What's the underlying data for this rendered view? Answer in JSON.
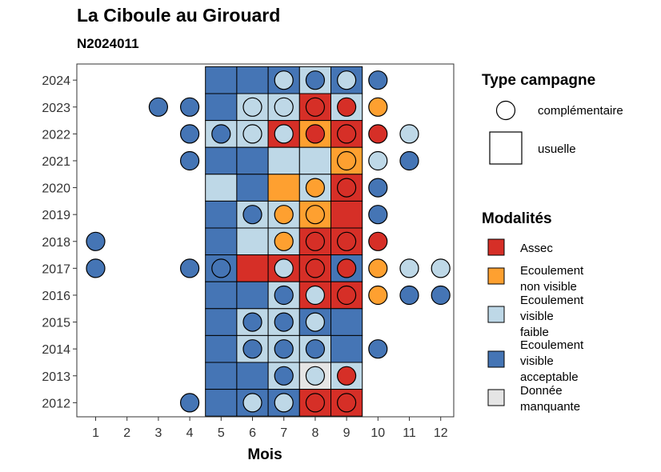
{
  "chart_data": {
    "type": "heatmap",
    "title": "La Ciboule au Girouard",
    "subtitle": "N2024011",
    "xlabel": "Mois",
    "ylabel": "",
    "x_ticks": [
      "1",
      "2",
      "3",
      "4",
      "5",
      "6",
      "7",
      "8",
      "9",
      "10",
      "11",
      "12"
    ],
    "y_ticks": [
      "2012",
      "2013",
      "2014",
      "2015",
      "2016",
      "2017",
      "2018",
      "2019",
      "2020",
      "2021",
      "2022",
      "2023",
      "2024"
    ],
    "legend_shape": {
      "title": "Type campagne",
      "items": [
        {
          "key": "complementaire",
          "label": "complémentaire"
        },
        {
          "key": "usuelle",
          "label": "usuelle"
        }
      ]
    },
    "legend_fill": {
      "title": "Modalités",
      "items": [
        {
          "key": "A",
          "lines": [
            "Assec"
          ],
          "color": "#d62f27"
        },
        {
          "key": "N",
          "lines": [
            "Ecoulement",
            "non visible"
          ],
          "color": "#fea030"
        },
        {
          "key": "F",
          "lines": [
            "Ecoulement",
            "visible",
            "faible"
          ],
          "color": "#bed8e7"
        },
        {
          "key": "V",
          "lines": [
            "Ecoulement",
            "visible",
            "acceptable"
          ],
          "color": "#4575b5"
        },
        {
          "key": "M",
          "lines": [
            "Donnée",
            "manquante"
          ],
          "color": "#e5e5e5"
        }
      ]
    },
    "usuelle": [
      {
        "year": 2024,
        "values": {
          "5": "V",
          "6": "V",
          "7": "V",
          "8": "F",
          "9": "V"
        }
      },
      {
        "year": 2023,
        "values": {
          "5": "V",
          "6": "F",
          "7": "F",
          "8": "A",
          "9": "F"
        }
      },
      {
        "year": 2022,
        "values": {
          "5": "F",
          "6": "F",
          "7": "A",
          "8": "N",
          "9": "A"
        }
      },
      {
        "year": 2021,
        "values": {
          "5": "V",
          "6": "V",
          "7": "F",
          "8": "F",
          "9": "N"
        }
      },
      {
        "year": 2020,
        "values": {
          "5": "F",
          "6": "V",
          "7": "N",
          "8": "F",
          "9": "A"
        }
      },
      {
        "year": 2019,
        "values": {
          "5": "V",
          "6": "F",
          "7": "F",
          "8": "N",
          "9": "A"
        }
      },
      {
        "year": 2018,
        "values": {
          "5": "V",
          "6": "F",
          "7": "F",
          "8": "A",
          "9": "A"
        }
      },
      {
        "year": 2017,
        "values": {
          "5": "V",
          "6": "A",
          "7": "A",
          "8": "A",
          "9": "V"
        }
      },
      {
        "year": 2016,
        "values": {
          "5": "V",
          "6": "V",
          "7": "F",
          "8": "A",
          "9": "A"
        }
      },
      {
        "year": 2015,
        "values": {
          "5": "V",
          "6": "F",
          "7": "F",
          "8": "V",
          "9": "V"
        }
      },
      {
        "year": 2014,
        "values": {
          "5": "V",
          "6": "F",
          "7": "F",
          "8": "F",
          "9": "V"
        }
      },
      {
        "year": 2013,
        "values": {
          "5": "V",
          "6": "V",
          "7": "F",
          "8": "M",
          "9": "F"
        }
      },
      {
        "year": 2012,
        "values": {
          "5": "V",
          "6": "V",
          "7": "V",
          "8": "A",
          "9": "A"
        }
      }
    ],
    "complementaire": [
      {
        "year": 2024,
        "values": {
          "7": "F",
          "8": "V",
          "9": "F",
          "10": "V"
        }
      },
      {
        "year": 2023,
        "values": {
          "3": "V",
          "4": "V",
          "6": "F",
          "7": "F",
          "8": "A",
          "9": "A",
          "10": "N"
        }
      },
      {
        "year": 2022,
        "values": {
          "4": "V",
          "5": "V",
          "6": "F",
          "7": "F",
          "8": "A",
          "9": "A",
          "10": "A",
          "11": "F"
        }
      },
      {
        "year": 2021,
        "values": {
          "4": "V",
          "9": "N",
          "10": "F",
          "11": "V"
        }
      },
      {
        "year": 2020,
        "values": {
          "8": "N",
          "9": "A",
          "10": "V"
        }
      },
      {
        "year": 2019,
        "values": {
          "6": "V",
          "7": "N",
          "8": "N",
          "10": "V"
        }
      },
      {
        "year": 2018,
        "values": {
          "1": "V",
          "7": "N",
          "8": "A",
          "9": "A",
          "10": "A"
        }
      },
      {
        "year": 2017,
        "values": {
          "1": "V",
          "4": "V",
          "5": "V",
          "7": "F",
          "8": "A",
          "9": "A",
          "10": "N",
          "11": "F",
          "12": "F"
        }
      },
      {
        "year": 2016,
        "values": {
          "7": "V",
          "8": "F",
          "9": "A",
          "10": "N",
          "11": "V",
          "12": "V"
        }
      },
      {
        "year": 2015,
        "values": {
          "6": "V",
          "7": "V",
          "8": "F"
        }
      },
      {
        "year": 2014,
        "values": {
          "6": "V",
          "7": "V",
          "8": "V",
          "10": "V"
        }
      },
      {
        "year": 2013,
        "values": {
          "7": "V",
          "8": "F",
          "9": "A"
        }
      },
      {
        "year": 2012,
        "values": {
          "4": "V",
          "6": "F",
          "7": "F",
          "8": "A",
          "9": "A"
        }
      }
    ]
  }
}
